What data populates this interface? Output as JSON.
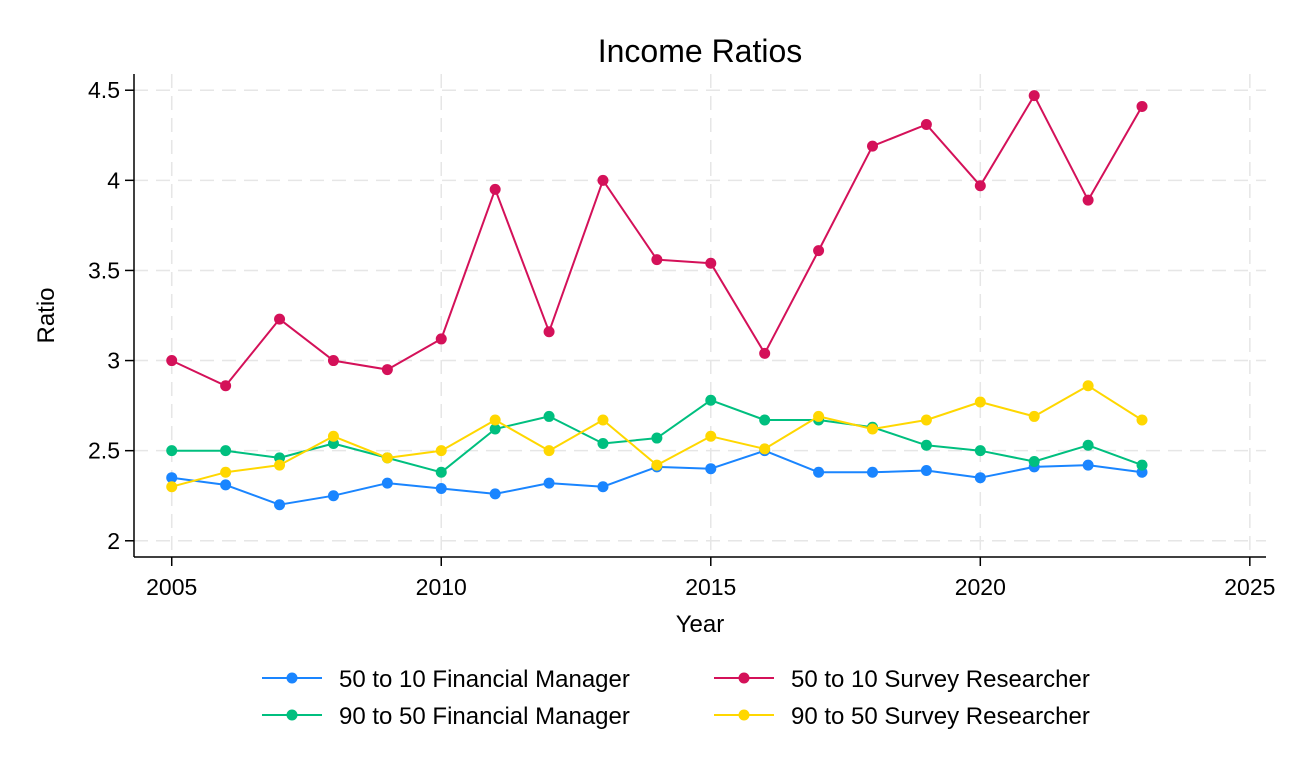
{
  "chart_data": {
    "type": "line",
    "title": "Income Ratios",
    "xlabel": "Year",
    "ylabel": "Ratio",
    "xlim": [
      2004.3,
      2025.3
    ],
    "ylim": [
      1.91,
      4.59
    ],
    "xticks": [
      2005,
      2010,
      2015,
      2020,
      2025
    ],
    "yticks": [
      2,
      2.5,
      3,
      3.5,
      4,
      4.5
    ],
    "ytick_labels": [
      "2",
      "2.5",
      "3",
      "3.5",
      "4",
      "4.5"
    ],
    "grid": true,
    "legend_position": "bottom",
    "x": [
      2005,
      2006,
      2007,
      2008,
      2009,
      2010,
      2011,
      2012,
      2013,
      2014,
      2015,
      2016,
      2017,
      2018,
      2019,
      2020,
      2021,
      2022,
      2023
    ],
    "series": [
      {
        "name": "50 to 10 Financial Manager",
        "color": "#1a85ff",
        "values": [
          2.35,
          2.31,
          2.2,
          2.25,
          2.32,
          2.29,
          2.26,
          2.32,
          2.3,
          2.41,
          2.4,
          2.5,
          2.38,
          2.38,
          2.39,
          2.35,
          2.41,
          2.42,
          2.38
        ]
      },
      {
        "name": "50 to 10 Survey Researcher",
        "color": "#d41159",
        "values": [
          3.0,
          2.86,
          3.23,
          3.0,
          2.95,
          3.12,
          3.95,
          3.16,
          4.0,
          3.56,
          3.54,
          3.04,
          3.61,
          4.19,
          4.31,
          3.97,
          4.47,
          3.89,
          4.41
        ]
      },
      {
        "name": "90 to 50 Financial Manager",
        "color": "#00bf7f",
        "values": [
          2.5,
          2.5,
          2.46,
          2.54,
          2.46,
          2.38,
          2.62,
          2.69,
          2.54,
          2.57,
          2.78,
          2.67,
          2.67,
          2.63,
          2.53,
          2.5,
          2.44,
          2.53,
          2.42
        ]
      },
      {
        "name": "90 to 50 Survey Researcher",
        "color": "#ffd700",
        "values": [
          2.3,
          2.38,
          2.42,
          2.58,
          2.46,
          2.5,
          2.67,
          2.5,
          2.67,
          2.42,
          2.58,
          2.51,
          2.69,
          2.62,
          2.67,
          2.77,
          2.69,
          2.86,
          2.67
        ]
      }
    ]
  }
}
